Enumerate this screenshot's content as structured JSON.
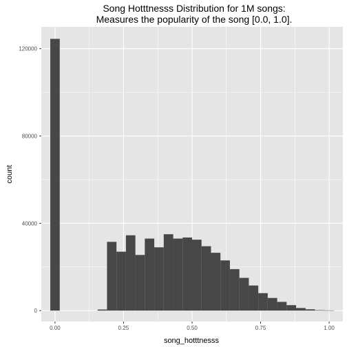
{
  "chart_data": {
    "type": "bar",
    "title_lines": [
      "Song Hotttnesss Distribution for 1M songs:",
      "Measures the popularity of the song [0.0, 1.0]."
    ],
    "xlabel": "song_hotttnesss",
    "ylabel": "count",
    "xlim": [
      -0.05,
      1.05
    ],
    "ylim": [
      -5000,
      130000
    ],
    "x_ticks": [
      0.0,
      0.25,
      0.5,
      0.75,
      1.0
    ],
    "x_tick_labels": [
      "0.00",
      "0.25",
      "0.50",
      "0.75",
      "1.00"
    ],
    "y_ticks": [
      0,
      40000,
      80000,
      120000
    ],
    "y_tick_labels": [
      "0",
      "40000",
      "80000",
      "120000"
    ],
    "bin_width": 0.0345,
    "bins": [
      {
        "x": 0.0,
        "count": 124500
      },
      {
        "x": 0.0345,
        "count": 0
      },
      {
        "x": 0.069,
        "count": 0
      },
      {
        "x": 0.1034,
        "count": 0
      },
      {
        "x": 0.1379,
        "count": 0
      },
      {
        "x": 0.1724,
        "count": 500
      },
      {
        "x": 0.2069,
        "count": 31500
      },
      {
        "x": 0.2414,
        "count": 27000
      },
      {
        "x": 0.2759,
        "count": 34500
      },
      {
        "x": 0.3103,
        "count": 25500
      },
      {
        "x": 0.3448,
        "count": 33000
      },
      {
        "x": 0.3793,
        "count": 29000
      },
      {
        "x": 0.4138,
        "count": 35000
      },
      {
        "x": 0.4483,
        "count": 33000
      },
      {
        "x": 0.4828,
        "count": 33500
      },
      {
        "x": 0.5172,
        "count": 32500
      },
      {
        "x": 0.5517,
        "count": 29500
      },
      {
        "x": 0.5862,
        "count": 26500
      },
      {
        "x": 0.6207,
        "count": 23000
      },
      {
        "x": 0.6552,
        "count": 19000
      },
      {
        "x": 0.6897,
        "count": 15000
      },
      {
        "x": 0.7241,
        "count": 11500
      },
      {
        "x": 0.7586,
        "count": 8000
      },
      {
        "x": 0.7931,
        "count": 5800
      },
      {
        "x": 0.8276,
        "count": 4000
      },
      {
        "x": 0.8621,
        "count": 2500
      },
      {
        "x": 0.8966,
        "count": 1200
      },
      {
        "x": 0.931,
        "count": 600
      },
      {
        "x": 0.9655,
        "count": 200
      },
      {
        "x": 1.0,
        "count": 100
      }
    ],
    "grid": true,
    "bar_color": "#474747",
    "panel_color": "#e5e5e5",
    "grid_color": "#ffffff"
  }
}
